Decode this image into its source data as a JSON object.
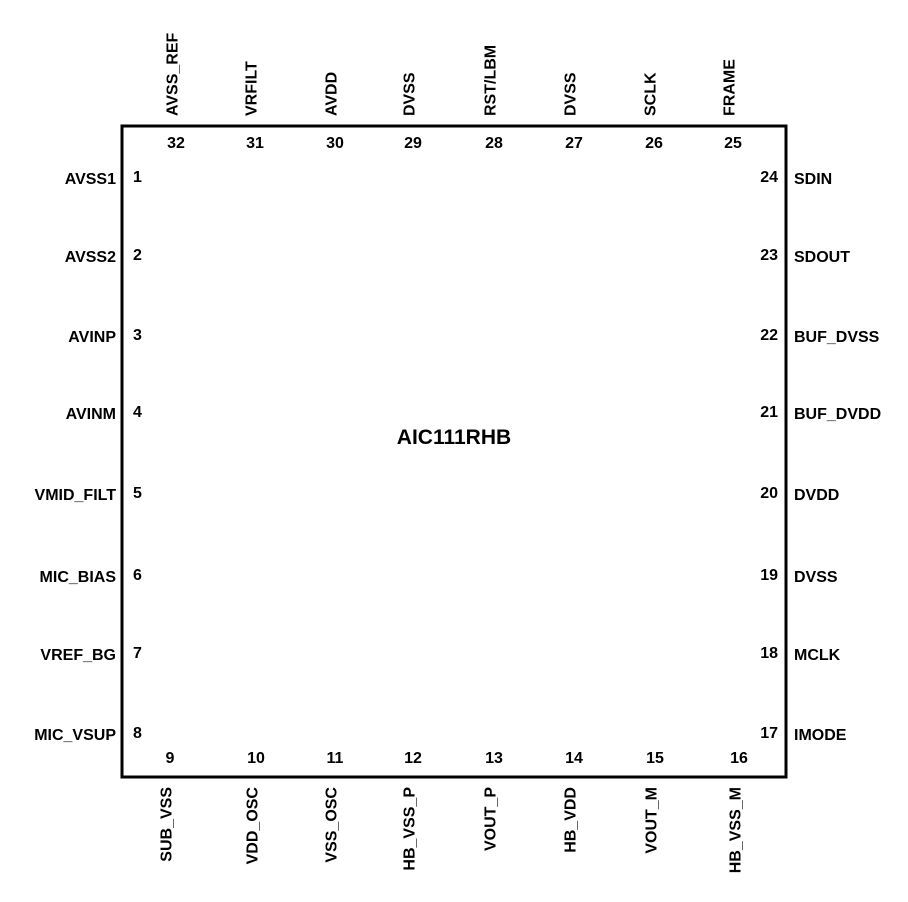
{
  "chip": {
    "name": "AIC111RHB"
  },
  "colors": {
    "stroke": "#000000",
    "background": "#ffffff"
  },
  "pins": {
    "left": [
      {
        "number": "1",
        "name": "AVSS1"
      },
      {
        "number": "2",
        "name": "AVSS2"
      },
      {
        "number": "3",
        "name": "AVINP"
      },
      {
        "number": "4",
        "name": "AVINM"
      },
      {
        "number": "5",
        "name": "VMID_FILT"
      },
      {
        "number": "6",
        "name": "MIC_BIAS"
      },
      {
        "number": "7",
        "name": "VREF_BG"
      },
      {
        "number": "8",
        "name": "MIC_VSUP"
      }
    ],
    "bottom": [
      {
        "number": "9",
        "name": "SUB_VSS"
      },
      {
        "number": "10",
        "name": "VDD_OSC"
      },
      {
        "number": "11",
        "name": "VSS_OSC"
      },
      {
        "number": "12",
        "name": "HB_VSS_P"
      },
      {
        "number": "13",
        "name": "VOUT_P"
      },
      {
        "number": "14",
        "name": "HB_VDD"
      },
      {
        "number": "15",
        "name": "VOUT_M"
      },
      {
        "number": "16",
        "name": "HB_VSS_M"
      }
    ],
    "right": [
      {
        "number": "24",
        "name": "SDIN"
      },
      {
        "number": "23",
        "name": "SDOUT"
      },
      {
        "number": "22",
        "name": "BUF_DVSS"
      },
      {
        "number": "21",
        "name": "BUF_DVDD"
      },
      {
        "number": "20",
        "name": "DVDD"
      },
      {
        "number": "19",
        "name": "DVSS"
      },
      {
        "number": "18",
        "name": "MCLK"
      },
      {
        "number": "17",
        "name": "IMODE"
      }
    ],
    "top": [
      {
        "number": "32",
        "name": "AVSS_REF"
      },
      {
        "number": "31",
        "name": "VRFILT"
      },
      {
        "number": "30",
        "name": "AVDD"
      },
      {
        "number": "29",
        "name": "DVSS"
      },
      {
        "number": "28",
        "name": "RST/LBM"
      },
      {
        "number": "27",
        "name": "DVSS"
      },
      {
        "number": "26",
        "name": "SCLK"
      },
      {
        "number": "25",
        "name": "FRAME"
      }
    ]
  }
}
